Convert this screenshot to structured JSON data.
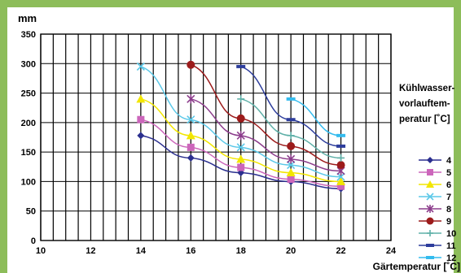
{
  "colors": {
    "frame_background": "#8dbd5a",
    "plot_background": "#ffffff",
    "grid": "#000000"
  },
  "chart_data": {
    "type": "line",
    "ylabel": "mm",
    "xlabel": "Gärtemperatur [˚C]",
    "xlim": [
      10,
      24
    ],
    "ylim": [
      0,
      350
    ],
    "x_ticks": [
      10,
      12,
      14,
      16,
      18,
      20,
      22,
      24
    ],
    "y_ticks": [
      0,
      50,
      100,
      150,
      200,
      250,
      300,
      350
    ],
    "grid": true,
    "legend_title": "Kühlwasser-\nvorlauftem-\nperatur [˚C]",
    "legend_position": "right",
    "series": [
      {
        "name": "4",
        "color": "#2b2f8f",
        "marker": "diamond",
        "x": [
          14,
          16,
          18,
          20,
          22
        ],
        "y": [
          178,
          140,
          115,
          100,
          88
        ]
      },
      {
        "name": "5",
        "color": "#cc66bb",
        "marker": "square",
        "x": [
          14,
          16,
          18,
          20,
          22
        ],
        "y": [
          205,
          158,
          124,
          104,
          92
        ]
      },
      {
        "name": "6",
        "color": "#f2e600",
        "marker": "triangle",
        "x": [
          14,
          16,
          18,
          20,
          22
        ],
        "y": [
          240,
          178,
          138,
          115,
          100
        ]
      },
      {
        "name": "7",
        "color": "#5bc8e8",
        "marker": "x",
        "x": [
          14,
          16,
          18,
          20,
          22
        ],
        "y": [
          295,
          205,
          158,
          128,
          108
        ]
      },
      {
        "name": "8",
        "color": "#8c3d8c",
        "marker": "star",
        "x": [
          16,
          18,
          20,
          22
        ],
        "y": [
          240,
          178,
          138,
          118
        ]
      },
      {
        "name": "9",
        "color": "#9c1b1b",
        "marker": "circle",
        "x": [
          16,
          18,
          20,
          22
        ],
        "y": [
          298,
          207,
          160,
          128
        ]
      },
      {
        "name": "10",
        "color": "#5fb0a8",
        "marker": "plus",
        "x": [
          18,
          20,
          22
        ],
        "y": [
          240,
          178,
          140
        ]
      },
      {
        "name": "11",
        "color": "#2d3d9c",
        "marker": "dash",
        "x": [
          18,
          20,
          22
        ],
        "y": [
          295,
          205,
          160
        ]
      },
      {
        "name": "12",
        "color": "#33bbee",
        "marker": "dash",
        "x": [
          20,
          22
        ],
        "y": [
          240,
          178
        ]
      }
    ]
  }
}
